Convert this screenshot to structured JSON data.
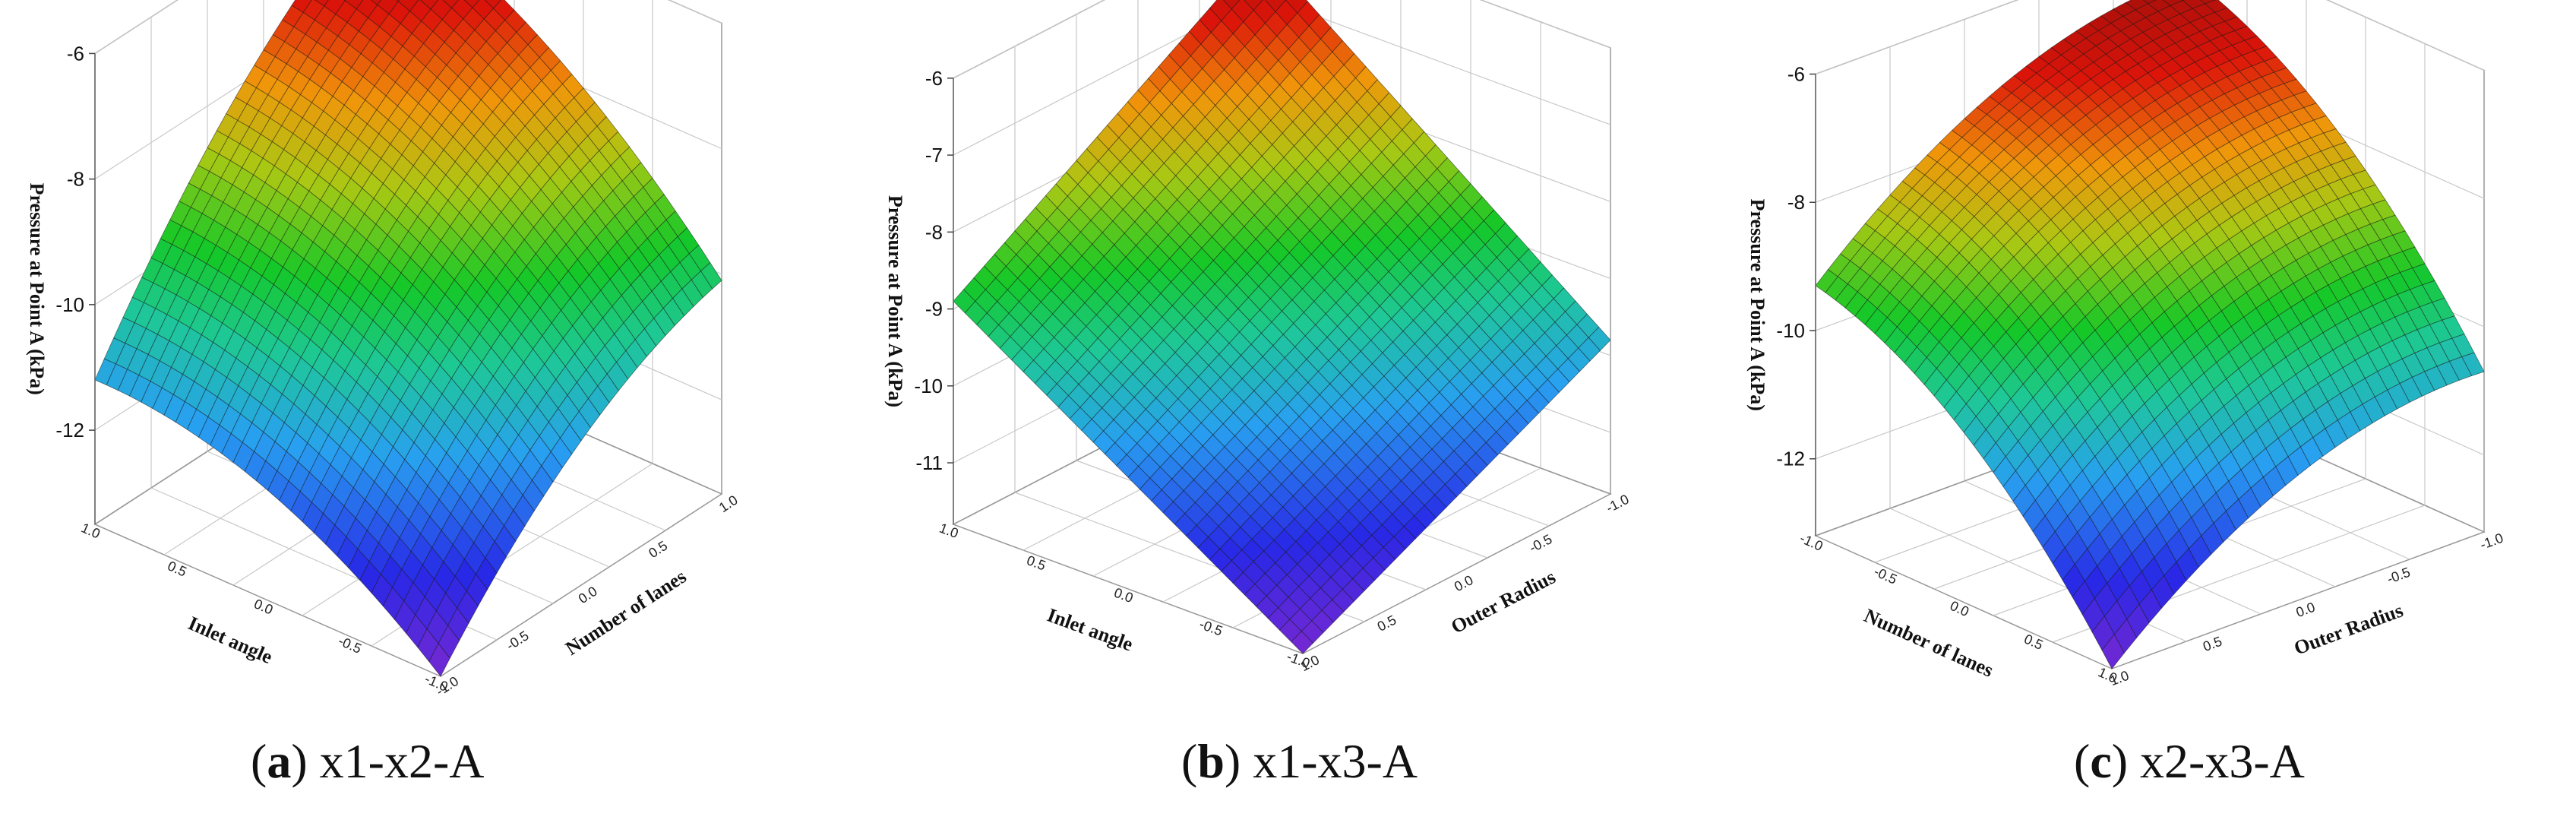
{
  "chart_data": [
    {
      "type": "surface3d",
      "panel_label": "(a)",
      "caption_letter": "a",
      "caption_text": "x1-x2-A",
      "xlabel": "Inlet angle",
      "ylabel": "Number of lanes",
      "zlabel": "Pressure at Point A (kPa)",
      "x_ticks": [
        "1.0",
        "0.5",
        "0.0",
        "-0.5",
        "-1.0"
      ],
      "y_ticks": [
        "-1.0",
        "-0.5",
        "0.0",
        "0.5",
        "1.0"
      ],
      "z_ticks": [
        "-6",
        "-8",
        "-10",
        "-12"
      ],
      "zlim": [
        -13.5,
        -6
      ],
      "corners": {
        "x1_y-1": -11.2,
        "x1_y1": -13.5,
        "x-1_y-1": -6.3,
        "x-1_y1": -10.1
      },
      "curvature": 1.2
    },
    {
      "type": "surface3d",
      "panel_label": "(b)",
      "caption_letter": "b",
      "caption_text": "x1-x3-A",
      "xlabel": "Inlet angle",
      "ylabel": "Outer Radius",
      "zlabel": "Pressure at Point A (kPa)",
      "x_ticks": [
        "1.0",
        "0.5",
        "0.0",
        "-0.5",
        "-1.0"
      ],
      "y_ticks": [
        "1.0",
        "0.5",
        "0.0",
        "-0.5",
        "-1.0"
      ],
      "z_ticks": [
        "-6",
        "-7",
        "-8",
        "-9",
        "-10",
        "-11"
      ],
      "zlim": [
        -11.8,
        -6
      ],
      "corners": {
        "x1_y1": -8.9,
        "x1_y-1": -11.8,
        "x-1_y1": -6.4,
        "x-1_y-1": -9.8
      },
      "curvature": 0.0
    },
    {
      "type": "surface3d",
      "panel_label": "(c)",
      "caption_letter": "c",
      "caption_text": "x2-x3-A",
      "xlabel": "Number of lanes",
      "ylabel": "Outer Radius",
      "zlabel": "Pressure at Point A (kPa)",
      "x_ticks": [
        "-1.0",
        "-0.5",
        "0.0",
        "0.5",
        "1.0"
      ],
      "y_ticks": [
        "1.0",
        "0.5",
        "0.0",
        "-0.5",
        "-1.0"
      ],
      "z_ticks": [
        "-6",
        "-8",
        "-10",
        "-12"
      ],
      "zlim": [
        -13.2,
        -6
      ],
      "corners": {
        "x-1_y1": -9.3,
        "x1_y1": -13.2,
        "x-1_y-1": -6.6,
        "x1_y-1": -10.7
      },
      "curvature": 1.4
    }
  ]
}
